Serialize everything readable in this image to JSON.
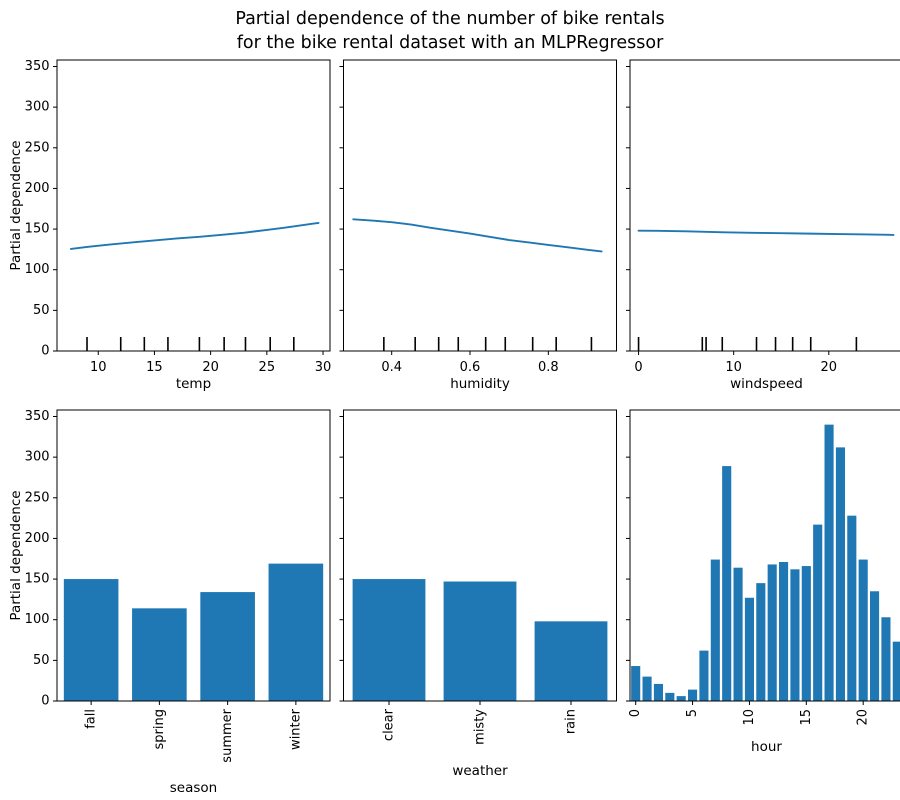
{
  "title": {
    "line1": "Partial dependence of the number of bike rentals",
    "line2": "for the bike rental dataset with an MLPRegressor"
  },
  "colors": {
    "series": "#1f77b4",
    "axis": "#000000",
    "rug": "#000000",
    "background": "#ffffff"
  },
  "y_axis": {
    "label": "Partial dependence",
    "lim": [
      0,
      358
    ],
    "ticks": [
      0,
      50,
      100,
      150,
      200,
      250,
      300,
      350
    ],
    "tick_labels": [
      "0",
      "50",
      "100",
      "150",
      "200",
      "250",
      "300",
      "350"
    ]
  },
  "chart_data": [
    {
      "type": "line",
      "name": "temp",
      "xlabel": "temp",
      "xlim": [
        6.33,
        30.62
      ],
      "xtick_positions": [
        10,
        15,
        20,
        25,
        30
      ],
      "xtick_labels": [
        "10",
        "15",
        "20",
        "25",
        "30"
      ],
      "xtick_rotation": 0,
      "x": [
        7.57,
        9,
        11,
        13,
        15,
        17,
        19,
        21,
        23,
        25,
        26.5,
        28,
        29,
        29.6
      ],
      "y": [
        125.5,
        128,
        131,
        133.5,
        136,
        138.5,
        140.5,
        143,
        145.5,
        149,
        151.5,
        154.5,
        156.5,
        157.5
      ],
      "rug": [
        9.0,
        12.0,
        14.1,
        16.2,
        19.0,
        21.2,
        23.1,
        25.3,
        27.4
      ]
    },
    {
      "type": "line",
      "name": "humidity",
      "xlabel": "humidity",
      "xlim": [
        0.277,
        0.974
      ],
      "xtick_positions": [
        0.4,
        0.6,
        0.8
      ],
      "xtick_labels": [
        "0.4",
        "0.6",
        "0.8"
      ],
      "xtick_rotation": 0,
      "x": [
        0.302,
        0.35,
        0.4,
        0.45,
        0.5,
        0.55,
        0.6,
        0.65,
        0.7,
        0.75,
        0.8,
        0.85,
        0.9,
        0.936
      ],
      "y": [
        162,
        160.5,
        158.5,
        155.5,
        151.5,
        148,
        144.5,
        140.5,
        136.5,
        133.5,
        130.5,
        127.5,
        124.5,
        122.5
      ],
      "rug": [
        0.38,
        0.46,
        0.52,
        0.57,
        0.64,
        0.69,
        0.76,
        0.82,
        0.91
      ]
    },
    {
      "type": "line",
      "name": "windspeed",
      "xlabel": "windspeed",
      "xlim": [
        -0.9,
        27.8
      ],
      "xtick_positions": [
        0,
        10,
        20
      ],
      "xtick_labels": [
        "0",
        "10",
        "20"
      ],
      "xtick_rotation": 0,
      "x": [
        0,
        2,
        5,
        7,
        9,
        12,
        15,
        18,
        21,
        24,
        26.8
      ],
      "y": [
        148,
        147.8,
        147.2,
        146.6,
        146,
        145.4,
        144.9,
        144.4,
        143.9,
        143.4,
        142.8
      ],
      "rug": [
        0,
        6.7,
        7.1,
        8.8,
        12.4,
        14.4,
        16.2,
        18.1,
        22.9
      ]
    },
    {
      "type": "bar",
      "name": "season",
      "xlabel": "season",
      "categories": [
        "fall",
        "spring",
        "summer",
        "winter"
      ],
      "values": [
        150,
        114,
        134,
        169
      ],
      "xtick_positions": [
        0,
        1,
        2,
        3
      ],
      "xtick_labels": [
        "fall",
        "spring",
        "summer",
        "winter"
      ],
      "xtick_rotation": 90
    },
    {
      "type": "bar",
      "name": "weather",
      "xlabel": "weather",
      "categories": [
        "clear",
        "misty",
        "rain"
      ],
      "values": [
        150,
        147,
        98
      ],
      "xtick_positions": [
        0,
        1,
        2
      ],
      "xtick_labels": [
        "clear",
        "misty",
        "rain"
      ],
      "xtick_rotation": 90
    },
    {
      "type": "bar",
      "name": "hour",
      "xlabel": "hour",
      "categories": [
        "0",
        "1",
        "2",
        "3",
        "4",
        "5",
        "6",
        "7",
        "8",
        "9",
        "10",
        "11",
        "12",
        "13",
        "14",
        "15",
        "16",
        "17",
        "18",
        "19",
        "20",
        "21",
        "22",
        "23"
      ],
      "values": [
        43,
        30,
        21,
        10,
        6,
        14,
        62,
        174,
        289,
        164,
        127,
        145,
        168,
        171,
        162,
        166,
        217,
        340,
        312,
        228,
        174,
        135,
        103,
        73
      ],
      "xtick_positions": [
        0,
        5,
        10,
        15,
        20
      ],
      "xtick_labels": [
        "0",
        "5",
        "10",
        "15",
        "20"
      ],
      "xtick_rotation": 90
    }
  ]
}
